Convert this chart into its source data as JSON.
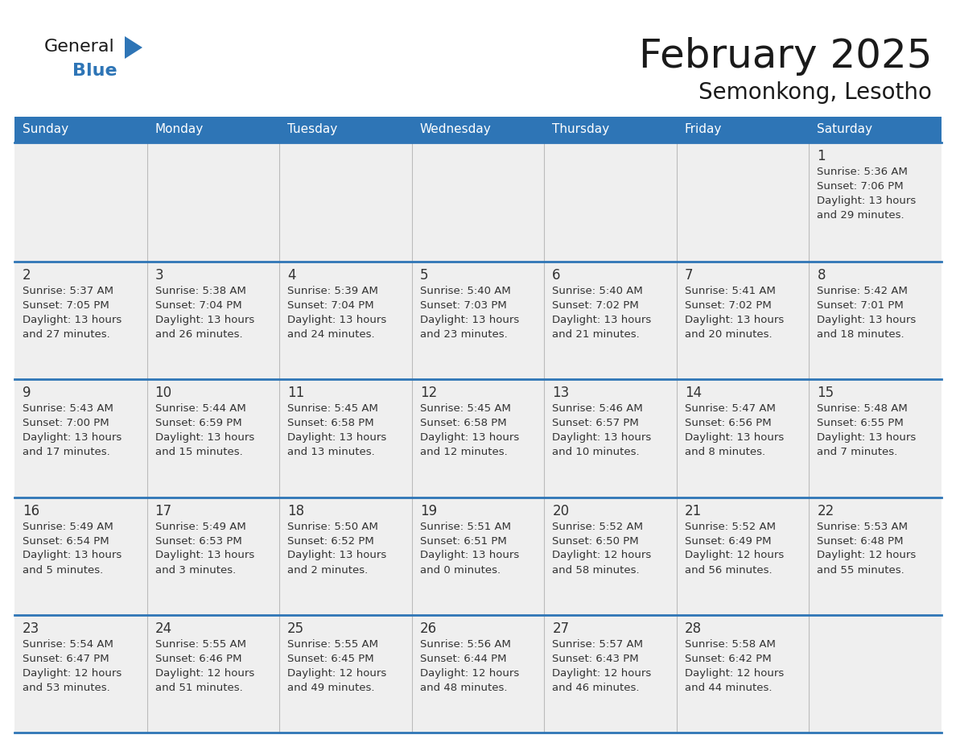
{
  "title": "February 2025",
  "subtitle": "Semonkong, Lesotho",
  "header_bg": "#2E75B6",
  "header_text_color": "#FFFFFF",
  "cell_bg": "#EFEFEF",
  "page_bg": "#FFFFFF",
  "cell_border_color": "#2E75B6",
  "day_number_color": "#333333",
  "cell_text_color": "#333333",
  "days_of_week": [
    "Sunday",
    "Monday",
    "Tuesday",
    "Wednesday",
    "Thursday",
    "Friday",
    "Saturday"
  ],
  "calendar_data": [
    [
      null,
      null,
      null,
      null,
      null,
      null,
      {
        "day": 1,
        "sunrise": "5:36 AM",
        "sunset": "7:06 PM",
        "daylight": "13 hours",
        "daylight2": "and 29 minutes."
      }
    ],
    [
      {
        "day": 2,
        "sunrise": "5:37 AM",
        "sunset": "7:05 PM",
        "daylight": "13 hours",
        "daylight2": "and 27 minutes."
      },
      {
        "day": 3,
        "sunrise": "5:38 AM",
        "sunset": "7:04 PM",
        "daylight": "13 hours",
        "daylight2": "and 26 minutes."
      },
      {
        "day": 4,
        "sunrise": "5:39 AM",
        "sunset": "7:04 PM",
        "daylight": "13 hours",
        "daylight2": "and 24 minutes."
      },
      {
        "day": 5,
        "sunrise": "5:40 AM",
        "sunset": "7:03 PM",
        "daylight": "13 hours",
        "daylight2": "and 23 minutes."
      },
      {
        "day": 6,
        "sunrise": "5:40 AM",
        "sunset": "7:02 PM",
        "daylight": "13 hours",
        "daylight2": "and 21 minutes."
      },
      {
        "day": 7,
        "sunrise": "5:41 AM",
        "sunset": "7:02 PM",
        "daylight": "13 hours",
        "daylight2": "and 20 minutes."
      },
      {
        "day": 8,
        "sunrise": "5:42 AM",
        "sunset": "7:01 PM",
        "daylight": "13 hours",
        "daylight2": "and 18 minutes."
      }
    ],
    [
      {
        "day": 9,
        "sunrise": "5:43 AM",
        "sunset": "7:00 PM",
        "daylight": "13 hours",
        "daylight2": "and 17 minutes."
      },
      {
        "day": 10,
        "sunrise": "5:44 AM",
        "sunset": "6:59 PM",
        "daylight": "13 hours",
        "daylight2": "and 15 minutes."
      },
      {
        "day": 11,
        "sunrise": "5:45 AM",
        "sunset": "6:58 PM",
        "daylight": "13 hours",
        "daylight2": "and 13 minutes."
      },
      {
        "day": 12,
        "sunrise": "5:45 AM",
        "sunset": "6:58 PM",
        "daylight": "13 hours",
        "daylight2": "and 12 minutes."
      },
      {
        "day": 13,
        "sunrise": "5:46 AM",
        "sunset": "6:57 PM",
        "daylight": "13 hours",
        "daylight2": "and 10 minutes."
      },
      {
        "day": 14,
        "sunrise": "5:47 AM",
        "sunset": "6:56 PM",
        "daylight": "13 hours",
        "daylight2": "and 8 minutes."
      },
      {
        "day": 15,
        "sunrise": "5:48 AM",
        "sunset": "6:55 PM",
        "daylight": "13 hours",
        "daylight2": "and 7 minutes."
      }
    ],
    [
      {
        "day": 16,
        "sunrise": "5:49 AM",
        "sunset": "6:54 PM",
        "daylight": "13 hours",
        "daylight2": "and 5 minutes."
      },
      {
        "day": 17,
        "sunrise": "5:49 AM",
        "sunset": "6:53 PM",
        "daylight": "13 hours",
        "daylight2": "and 3 minutes."
      },
      {
        "day": 18,
        "sunrise": "5:50 AM",
        "sunset": "6:52 PM",
        "daylight": "13 hours",
        "daylight2": "and 2 minutes."
      },
      {
        "day": 19,
        "sunrise": "5:51 AM",
        "sunset": "6:51 PM",
        "daylight": "13 hours",
        "daylight2": "and 0 minutes."
      },
      {
        "day": 20,
        "sunrise": "5:52 AM",
        "sunset": "6:50 PM",
        "daylight": "12 hours",
        "daylight2": "and 58 minutes."
      },
      {
        "day": 21,
        "sunrise": "5:52 AM",
        "sunset": "6:49 PM",
        "daylight": "12 hours",
        "daylight2": "and 56 minutes."
      },
      {
        "day": 22,
        "sunrise": "5:53 AM",
        "sunset": "6:48 PM",
        "daylight": "12 hours",
        "daylight2": "and 55 minutes."
      }
    ],
    [
      {
        "day": 23,
        "sunrise": "5:54 AM",
        "sunset": "6:47 PM",
        "daylight": "12 hours",
        "daylight2": "and 53 minutes."
      },
      {
        "day": 24,
        "sunrise": "5:55 AM",
        "sunset": "6:46 PM",
        "daylight": "12 hours",
        "daylight2": "and 51 minutes."
      },
      {
        "day": 25,
        "sunrise": "5:55 AM",
        "sunset": "6:45 PM",
        "daylight": "12 hours",
        "daylight2": "and 49 minutes."
      },
      {
        "day": 26,
        "sunrise": "5:56 AM",
        "sunset": "6:44 PM",
        "daylight": "12 hours",
        "daylight2": "and 48 minutes."
      },
      {
        "day": 27,
        "sunrise": "5:57 AM",
        "sunset": "6:43 PM",
        "daylight": "12 hours",
        "daylight2": "and 46 minutes."
      },
      {
        "day": 28,
        "sunrise": "5:58 AM",
        "sunset": "6:42 PM",
        "daylight": "12 hours",
        "daylight2": "and 44 minutes."
      },
      null
    ]
  ],
  "logo_text_general": "General",
  "logo_text_blue": "Blue",
  "logo_triangle_color": "#2E75B6",
  "logo_general_color": "#1a1a1a",
  "title_fontsize": 36,
  "subtitle_fontsize": 20,
  "header_fontsize": 11,
  "day_number_fontsize": 12,
  "cell_text_fontsize": 9.5
}
